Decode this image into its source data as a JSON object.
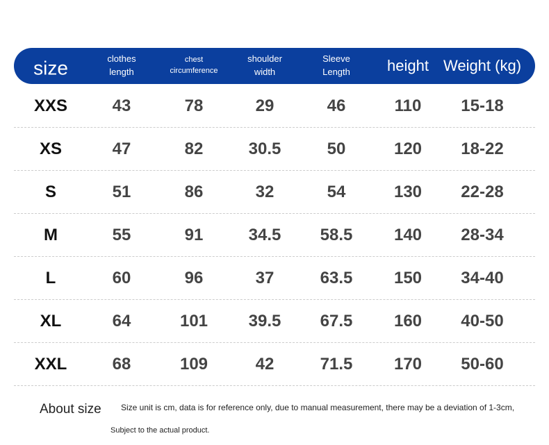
{
  "table": {
    "header": [
      [
        "size"
      ],
      [
        "clothes",
        "length"
      ],
      [
        "chest",
        "circumference"
      ],
      [
        "shoulder",
        "width"
      ],
      [
        "Sleeve",
        "Length"
      ],
      [
        "height"
      ],
      [
        "Weight (kg)"
      ]
    ],
    "rows": [
      [
        "XXS",
        "43",
        "78",
        "29",
        "46",
        "110",
        "15-18"
      ],
      [
        "XS",
        "47",
        "82",
        "30.5",
        "50",
        "120",
        "18-22"
      ],
      [
        "S",
        "51",
        "86",
        "32",
        "54",
        "130",
        "22-28"
      ],
      [
        "M",
        "55",
        "91",
        "34.5",
        "58.5",
        "140",
        "28-34"
      ],
      [
        "L",
        "60",
        "96",
        "37",
        "63.5",
        "150",
        "34-40"
      ],
      [
        "XL",
        "64",
        "101",
        "39.5",
        "67.5",
        "160",
        "40-50"
      ],
      [
        "XXL",
        "68",
        "109",
        "42",
        "71.5",
        "170",
        "50-60"
      ]
    ]
  },
  "notes": {
    "title": "About size",
    "line1": "Size unit is cm, data is for reference only, due to manual measurement, there may be a deviation of 1-3cm,",
    "line2": "Subject to the actual product."
  }
}
